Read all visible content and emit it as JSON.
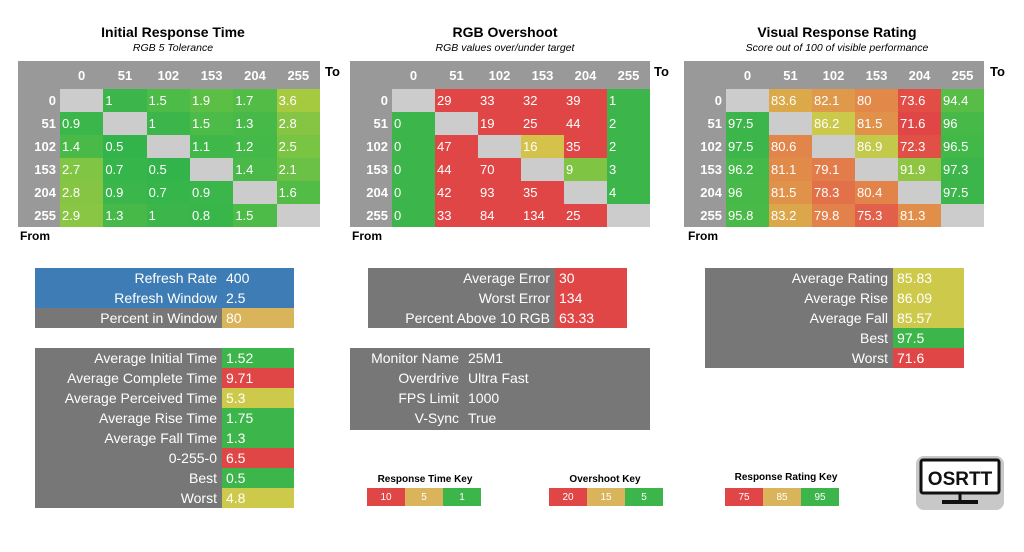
{
  "chart_data": [
    {
      "type": "heatmap",
      "title": "Initial Response Time",
      "subtitle": "RGB 5 Tolerance",
      "to_label": "To",
      "from_label": "From",
      "columns": [
        "0",
        "51",
        "102",
        "153",
        "204",
        "255"
      ],
      "rows": [
        "0",
        "51",
        "102",
        "153",
        "204",
        "255"
      ],
      "values": [
        [
          "",
          "1",
          "1.5",
          "1.9",
          "1.7",
          "3.6"
        ],
        [
          "0.9",
          "",
          "1",
          "1.5",
          "1.3",
          "2.8"
        ],
        [
          "1.4",
          "0.5",
          "",
          "1.1",
          "1.2",
          "2.5"
        ],
        [
          "2.7",
          "0.7",
          "0.5",
          "",
          "1.4",
          "2.1"
        ],
        [
          "2.8",
          "0.9",
          "0.7",
          "0.9",
          "",
          "1.6"
        ],
        [
          "2.9",
          "1.3",
          "1",
          "0.8",
          "1.5",
          ""
        ]
      ],
      "colors": [
        [
          "#cccccc",
          "#3cb54a",
          "#4cbb48",
          "#5cbf45",
          "#52bc47",
          "#a6ca3f"
        ],
        [
          "#3ab64a",
          "#cccccc",
          "#3cb54a",
          "#4cbb48",
          "#46b949",
          "#85c543"
        ],
        [
          "#49ba48",
          "#33b44b",
          "#cccccc",
          "#40b749",
          "#44b849",
          "#7ac444"
        ],
        [
          "#80c543",
          "#36b54b",
          "#33b44b",
          "#cccccc",
          "#49ba48",
          "#6ac145"
        ],
        [
          "#85c543",
          "#3ab64a",
          "#36b54b",
          "#3ab64a",
          "#cccccc",
          "#52bc47"
        ],
        [
          "#88c643",
          "#46b949",
          "#3cb54a",
          "#38b64a",
          "#4cbb48",
          "#cccccc"
        ]
      ]
    },
    {
      "type": "heatmap",
      "title": "RGB Overshoot",
      "subtitle": "RGB values over/under target",
      "to_label": "To",
      "from_label": "From",
      "columns": [
        "0",
        "51",
        "102",
        "153",
        "204",
        "255"
      ],
      "rows": [
        "0",
        "51",
        "102",
        "153",
        "204",
        "255"
      ],
      "values": [
        [
          "",
          "29",
          "33",
          "32",
          "39",
          "1"
        ],
        [
          "0",
          "",
          "19",
          "25",
          "44",
          "2"
        ],
        [
          "0",
          "47",
          "",
          "16",
          "35",
          "2"
        ],
        [
          "0",
          "44",
          "70",
          "",
          "9",
          "3"
        ],
        [
          "0",
          "42",
          "93",
          "35",
          "",
          "4"
        ],
        [
          "0",
          "33",
          "84",
          "134",
          "25",
          ""
        ]
      ],
      "colors": [
        [
          "#cccccc",
          "#e04646",
          "#e04646",
          "#e04646",
          "#e04646",
          "#3cb54a"
        ],
        [
          "#3cb54a",
          "#cccccc",
          "#e04646",
          "#e04646",
          "#e04646",
          "#3cb54a"
        ],
        [
          "#3cb54a",
          "#e04646",
          "#cccccc",
          "#d4c24a",
          "#e04646",
          "#3cb54a"
        ],
        [
          "#3cb54a",
          "#e04646",
          "#e04646",
          "#cccccc",
          "#7fc443",
          "#3cb54a"
        ],
        [
          "#3cb54a",
          "#e04646",
          "#e04646",
          "#e04646",
          "#cccccc",
          "#3cb54a"
        ],
        [
          "#3cb54a",
          "#e04646",
          "#e04646",
          "#e04646",
          "#e04646",
          "#cccccc"
        ]
      ]
    },
    {
      "type": "heatmap",
      "title": "Visual Response Rating",
      "subtitle": "Score out of 100 of visible performance",
      "to_label": "To",
      "from_label": "From",
      "columns": [
        "0",
        "51",
        "102",
        "153",
        "204",
        "255"
      ],
      "rows": [
        "0",
        "51",
        "102",
        "153",
        "204",
        "255"
      ],
      "values": [
        [
          "",
          "83.6",
          "82.1",
          "80",
          "73.6",
          "94.4"
        ],
        [
          "97.5",
          "",
          "86.2",
          "81.5",
          "71.6",
          "96"
        ],
        [
          "97.5",
          "80.6",
          "",
          "86.9",
          "72.3",
          "96.5"
        ],
        [
          "96.2",
          "81.1",
          "79.1",
          "",
          "91.9",
          "97.3"
        ],
        [
          "96",
          "81.5",
          "78.3",
          "80.4",
          "",
          "97.5"
        ],
        [
          "95.8",
          "83.2",
          "79.8",
          "75.3",
          "81.3",
          ""
        ]
      ],
      "colors": [
        [
          "#cccccc",
          "#dba94a",
          "#de9a4a",
          "#e2894a",
          "#e24d46",
          "#58bd46"
        ],
        [
          "#3cb54a",
          "#cccccc",
          "#cbc94a",
          "#e0924a",
          "#e04646",
          "#47b949"
        ],
        [
          "#3cb54a",
          "#e2854a",
          "#cccccc",
          "#c3c94a",
          "#e05046",
          "#42b849"
        ],
        [
          "#44b849",
          "#e08b4a",
          "#e27c4a",
          "#cccccc",
          "#8ec543",
          "#3cb54a"
        ],
        [
          "#47b949",
          "#e0924a",
          "#e2714a",
          "#e2844a",
          "#cccccc",
          "#3cb54a"
        ],
        [
          "#49ba48",
          "#dca64a",
          "#e2814a",
          "#e2604a",
          "#e08e4a",
          "#cccccc"
        ]
      ]
    }
  ],
  "panels": {
    "refresh": [
      {
        "label": "Refresh Rate",
        "value": "400",
        "label_color": "#3d7cb5",
        "value_color": "#3d7cb5"
      },
      {
        "label": "Refresh Window",
        "value": "2.5",
        "label_color": "#3d7cb5",
        "value_color": "#3d7cb5"
      },
      {
        "label": "Percent in Window",
        "value": "80",
        "label_color": "#777777",
        "value_color": "#d9b45a"
      }
    ],
    "times": [
      {
        "label": "Average Initial Time",
        "value": "1.52",
        "value_color": "#3cb54a"
      },
      {
        "label": "Average Complete Time",
        "value": "9.71",
        "value_color": "#e04646"
      },
      {
        "label": "Average Perceived Time",
        "value": "5.3",
        "value_color": "#cdc94a"
      },
      {
        "label": "Average Rise Time",
        "value": "1.75",
        "value_color": "#3cb54a"
      },
      {
        "label": "Average Fall Time",
        "value": "1.3",
        "value_color": "#3cb54a"
      },
      {
        "label": "0-255-0",
        "value": "6.5",
        "value_color": "#e04646"
      },
      {
        "label": "Best",
        "value": "0.5",
        "value_color": "#3cb54a"
      },
      {
        "label": "Worst",
        "value": "4.8",
        "value_color": "#cdc94a"
      }
    ],
    "overshoot": [
      {
        "label": "Average Error",
        "value": "30",
        "value_color": "#e04646"
      },
      {
        "label": "Worst Error",
        "value": "134",
        "value_color": "#e04646"
      },
      {
        "label": "Percent Above 10 RGB",
        "value": "63.33",
        "value_color": "#e04646"
      }
    ],
    "monitor": [
      {
        "label": "Monitor Name",
        "value": "25M1"
      },
      {
        "label": "Overdrive",
        "value": "Ultra Fast"
      },
      {
        "label": "FPS Limit",
        "value": "1000"
      },
      {
        "label": "V-Sync",
        "value": "True"
      }
    ],
    "rating": [
      {
        "label": "Average Rating",
        "value": "85.83",
        "value_color": "#cdc94a"
      },
      {
        "label": "Average Rise",
        "value": "86.09",
        "value_color": "#cdc94a"
      },
      {
        "label": "Average Fall",
        "value": "85.57",
        "value_color": "#cdc94a"
      },
      {
        "label": "Best",
        "value": "97.5",
        "value_color": "#3cb54a"
      },
      {
        "label": "Worst",
        "value": "71.6",
        "value_color": "#e04646"
      }
    ]
  },
  "keys": [
    {
      "title": "Response Time Key",
      "cells": [
        {
          "v": "10",
          "c": "#e04646"
        },
        {
          "v": "5",
          "c": "#d9b45a"
        },
        {
          "v": "1",
          "c": "#3cb54a"
        }
      ]
    },
    {
      "title": "Overshoot Key",
      "cells": [
        {
          "v": "20",
          "c": "#e04646"
        },
        {
          "v": "15",
          "c": "#d9b45a"
        },
        {
          "v": "5",
          "c": "#3cb54a"
        }
      ]
    },
    {
      "title": "Response Rating Key",
      "cells": [
        {
          "v": "75",
          "c": "#e04646"
        },
        {
          "v": "85",
          "c": "#d9b45a"
        },
        {
          "v": "95",
          "c": "#3cb54a"
        }
      ]
    }
  ],
  "logo": {
    "text": "OSRTT",
    "icon": "monitor-icon"
  }
}
